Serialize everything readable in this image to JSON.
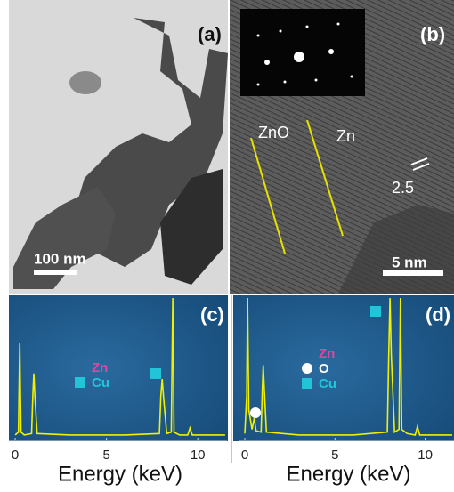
{
  "panels": [
    {
      "label": "(a)",
      "scale_bar": "100 nm"
    },
    {
      "label": "(b)",
      "annotations": [
        "ZnO",
        "Zn",
        "2.5"
      ],
      "scale_bar": "5 nm"
    }
  ],
  "chart_data": [
    {
      "type": "line",
      "label": "(c)",
      "xlabel": "Energy (keV)",
      "xlim": [
        -0.1,
        11.6
      ],
      "ylim": [
        0,
        100
      ],
      "xticks": [
        0,
        5,
        10
      ],
      "x": [
        0,
        0.18,
        0.25,
        0.32,
        0.5,
        0.9,
        0.97,
        1.02,
        1.08,
        1.2,
        3,
        6,
        7.9,
        7.98,
        8.05,
        8.12,
        8.3,
        8.55,
        8.63,
        8.7,
        9.0,
        9.45,
        9.57,
        9.7,
        11.5
      ],
      "series": [
        {
          "color": "#f0f000",
          "values": [
            2,
            4,
            68,
            4,
            2,
            3,
            30,
            46,
            30,
            3,
            2,
            2,
            3,
            30,
            42,
            30,
            3,
            4,
            100,
            4,
            2,
            2,
            7,
            2,
            2
          ]
        }
      ],
      "legend": [
        {
          "name": "Zn",
          "color": "#e0479e"
        },
        {
          "name": "Cu",
          "color": "#22c4d8"
        }
      ]
    },
    {
      "type": "line",
      "label": "(d)",
      "xlabel": "Energy (keV)",
      "xlim": [
        -0.1,
        11.6
      ],
      "ylim": [
        0,
        100
      ],
      "xticks": [
        0,
        5,
        10
      ],
      "x": [
        0,
        0.1,
        0.15,
        0.22,
        0.4,
        0.52,
        0.62,
        0.9,
        0.97,
        1.02,
        1.08,
        1.2,
        3,
        6,
        7.9,
        7.98,
        8.05,
        8.12,
        8.3,
        8.55,
        8.63,
        8.7,
        9.0,
        9.45,
        9.57,
        9.7,
        11.5
      ],
      "series": [
        {
          "color": "#f0f000",
          "values": [
            3,
            30,
            100,
            20,
            6,
            14,
            5,
            4,
            35,
            52,
            35,
            4,
            2,
            2,
            4,
            60,
            100,
            60,
            4,
            6,
            100,
            6,
            3,
            2,
            8,
            2,
            2
          ]
        }
      ],
      "legend": [
        {
          "name": "Zn",
          "color": "#e0479e"
        },
        {
          "name": "O",
          "color": "#ffffff"
        },
        {
          "name": "Cu",
          "color": "#22c4d8"
        }
      ]
    }
  ]
}
